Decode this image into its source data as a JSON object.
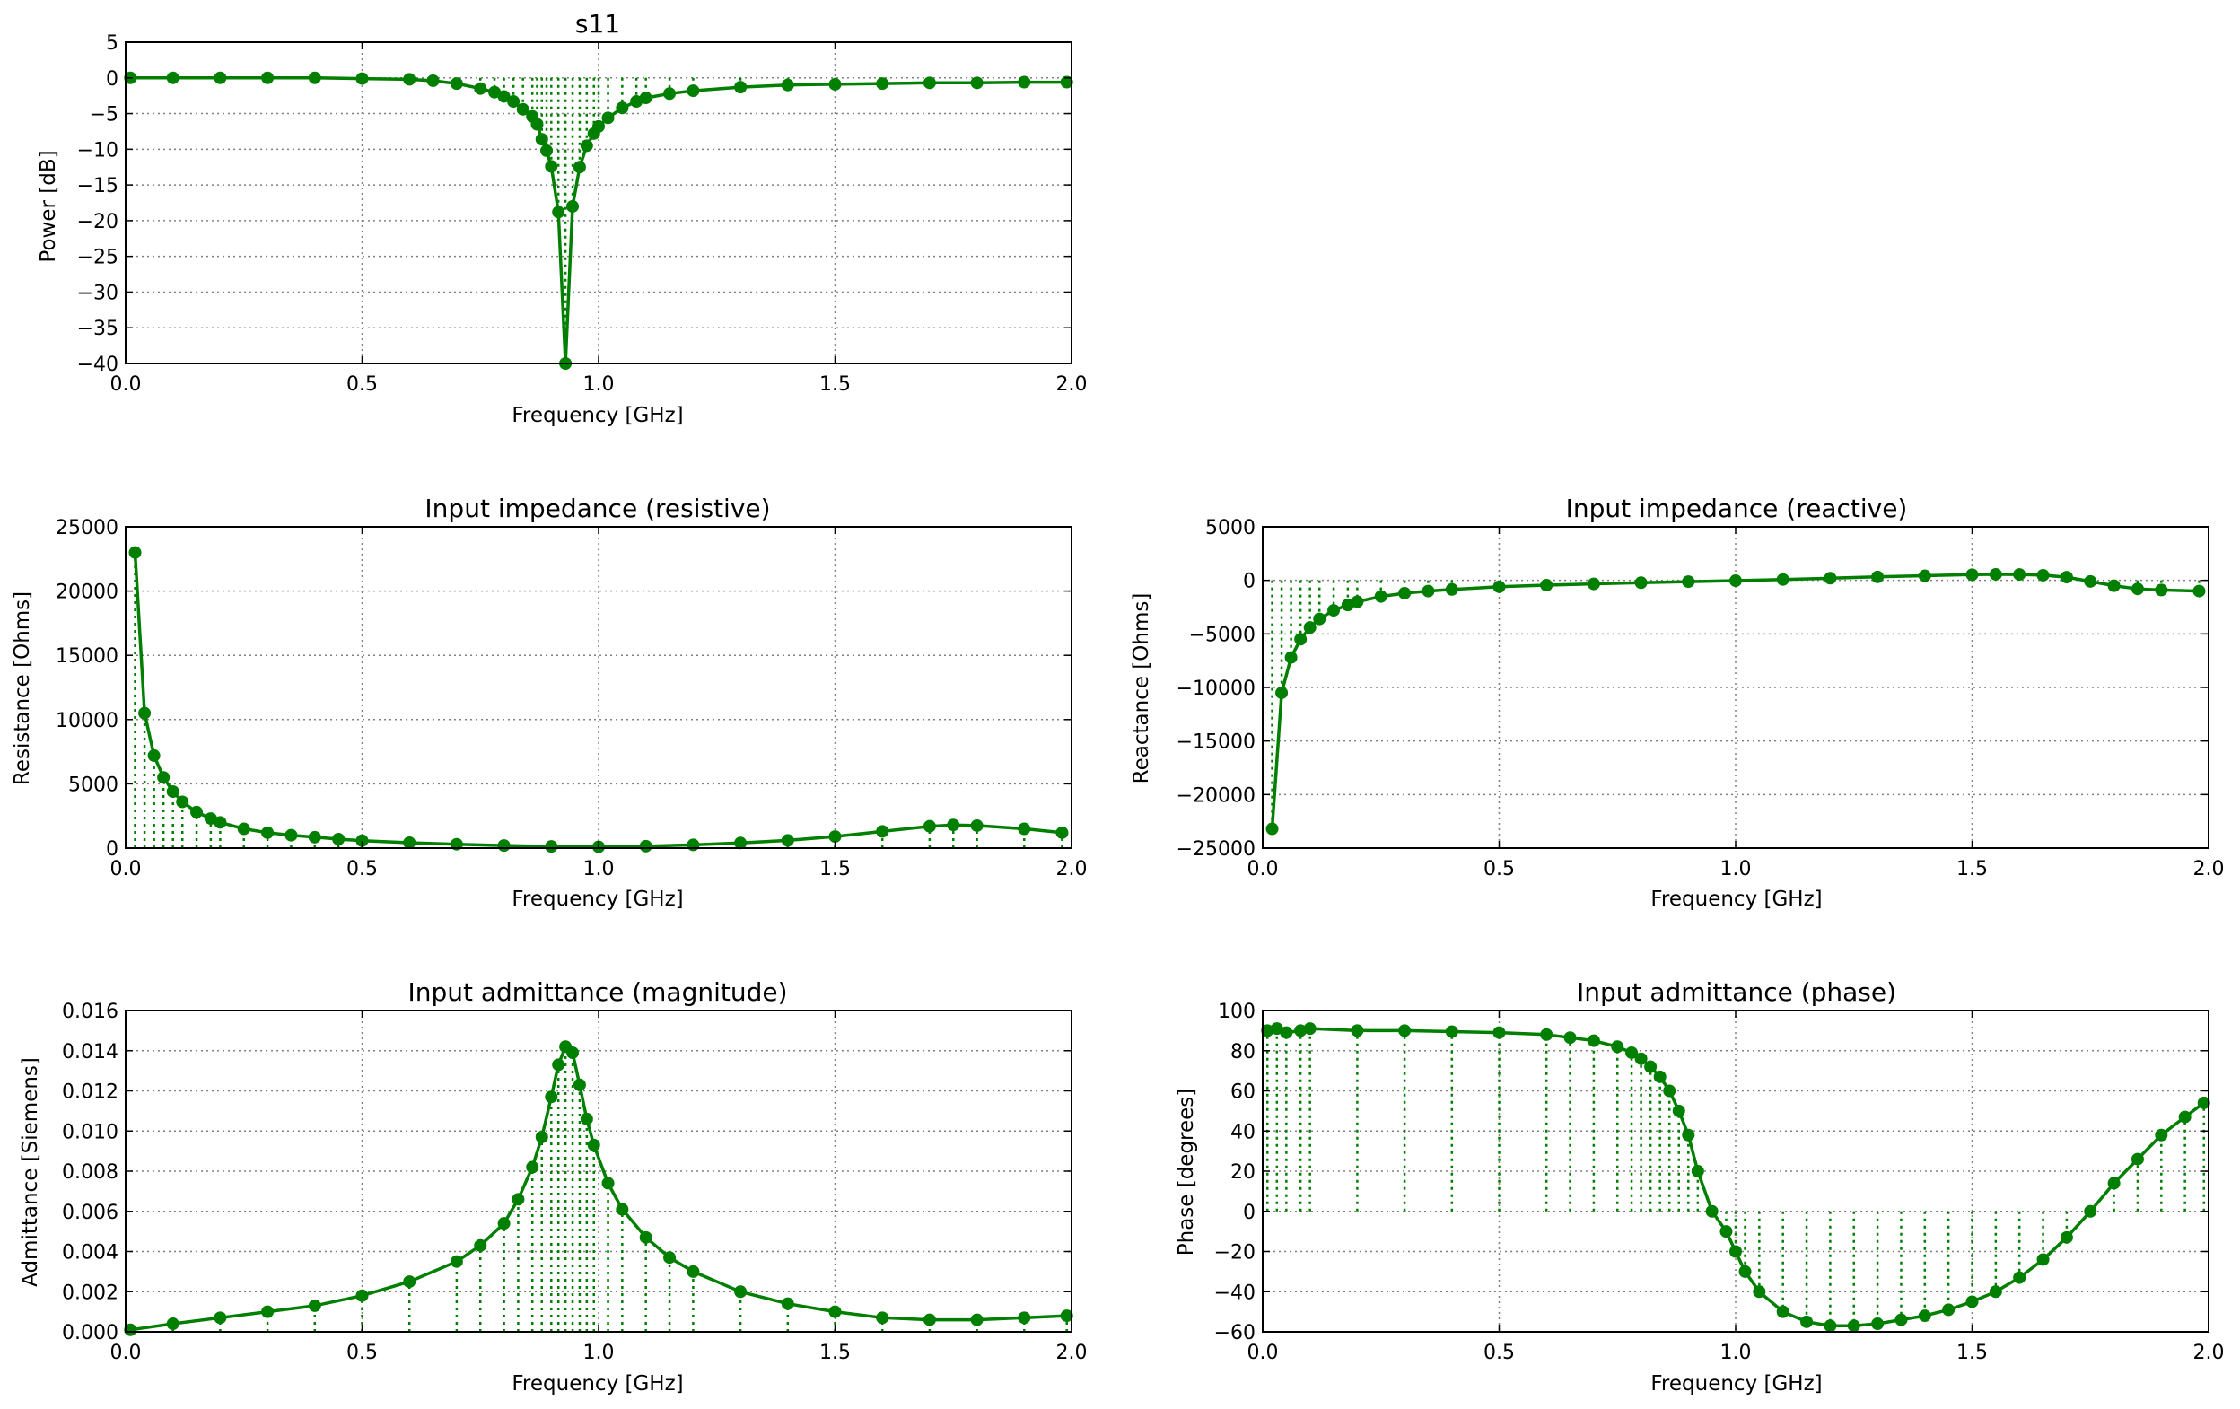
{
  "figure": {
    "background": "#ffffff",
    "line_color": "#007f00",
    "grid_color": "#808080"
  },
  "chart_data": [
    {
      "id": "s11",
      "type": "line",
      "title": "s11",
      "xlabel": "Frequency [GHz]",
      "ylabel": "Power [dB]",
      "xlim": [
        0.0,
        2.0
      ],
      "ylim": [
        -40,
        5
      ],
      "xticks": [
        "0.0",
        "0.5",
        "1.0",
        "1.5",
        "2.0"
      ],
      "yticks": [
        "5",
        "0",
        "−5",
        "−10",
        "−15",
        "−20",
        "−25",
        "−30",
        "−35",
        "−40"
      ],
      "ytick_values": [
        5,
        0,
        -5,
        -10,
        -15,
        -20,
        -25,
        -30,
        -35,
        -40
      ],
      "grid": true,
      "stem_baseline": 0,
      "style": "line-with-markers-and-dotted-stems",
      "x": [
        0.01,
        0.1,
        0.2,
        0.3,
        0.4,
        0.5,
        0.6,
        0.65,
        0.7,
        0.75,
        0.78,
        0.8,
        0.82,
        0.84,
        0.86,
        0.87,
        0.88,
        0.89,
        0.9,
        0.915,
        0.93,
        0.945,
        0.96,
        0.975,
        0.99,
        1.0,
        1.02,
        1.05,
        1.08,
        1.1,
        1.15,
        1.2,
        1.3,
        1.4,
        1.5,
        1.6,
        1.7,
        1.8,
        1.9,
        1.99
      ],
      "y": [
        0.0,
        0.0,
        0.0,
        0.0,
        0.0,
        -0.1,
        -0.2,
        -0.4,
        -0.8,
        -1.5,
        -2.0,
        -2.6,
        -3.3,
        -4.4,
        -5.4,
        -6.5,
        -8.6,
        -10.2,
        -12.4,
        -18.8,
        -40.0,
        -18.0,
        -12.5,
        -9.5,
        -7.8,
        -6.8,
        -5.6,
        -4.2,
        -3.3,
        -2.8,
        -2.2,
        -1.8,
        -1.3,
        -1.0,
        -0.9,
        -0.8,
        -0.7,
        -0.7,
        -0.6,
        -0.6
      ]
    },
    {
      "id": "resistance",
      "type": "line",
      "title": "Input impedance (resistive)",
      "xlabel": "Frequency [GHz]",
      "ylabel": "Resistance [Ohms]",
      "xlim": [
        0.0,
        2.0
      ],
      "ylim": [
        0,
        25000
      ],
      "xticks": [
        "0.0",
        "0.5",
        "1.0",
        "1.5",
        "2.0"
      ],
      "yticks": [
        "25000",
        "20000",
        "15000",
        "10000",
        "5000",
        "0"
      ],
      "ytick_values": [
        25000,
        20000,
        15000,
        10000,
        5000,
        0
      ],
      "grid": true,
      "stem_baseline": 0,
      "style": "line-with-markers-and-dotted-stems",
      "x": [
        0.02,
        0.04,
        0.06,
        0.08,
        0.1,
        0.12,
        0.15,
        0.18,
        0.2,
        0.25,
        0.3,
        0.35,
        0.4,
        0.45,
        0.5,
        0.6,
        0.7,
        0.8,
        0.9,
        1.0,
        1.1,
        1.2,
        1.3,
        1.4,
        1.5,
        1.6,
        1.7,
        1.75,
        1.8,
        1.9,
        1.98
      ],
      "y": [
        23000,
        10500,
        7200,
        5500,
        4400,
        3600,
        2800,
        2300,
        2000,
        1500,
        1200,
        1000,
        850,
        700,
        580,
        420,
        300,
        200,
        130,
        100,
        150,
        250,
        400,
        600,
        900,
        1300,
        1700,
        1800,
        1750,
        1500,
        1200
      ]
    },
    {
      "id": "reactance",
      "type": "line",
      "title": "Input impedance (reactive)",
      "xlabel": "Frequency [GHz]",
      "ylabel": "Reactance [Ohms]",
      "xlim": [
        0.0,
        2.0
      ],
      "ylim": [
        -25000,
        5000
      ],
      "xticks": [
        "0.0",
        "0.5",
        "1.0",
        "1.5",
        "2.0"
      ],
      "yticks": [
        "5000",
        "0",
        "−5000",
        "−10000",
        "−15000",
        "−20000",
        "−25000"
      ],
      "ytick_values": [
        5000,
        0,
        -5000,
        -10000,
        -15000,
        -20000,
        -25000
      ],
      "grid": true,
      "stem_baseline": 0,
      "style": "line-with-markers-and-dotted-stems",
      "x": [
        0.02,
        0.04,
        0.06,
        0.08,
        0.1,
        0.12,
        0.15,
        0.18,
        0.2,
        0.25,
        0.3,
        0.35,
        0.4,
        0.5,
        0.6,
        0.7,
        0.8,
        0.9,
        1.0,
        1.1,
        1.2,
        1.3,
        1.4,
        1.5,
        1.55,
        1.6,
        1.65,
        1.7,
        1.75,
        1.8,
        1.85,
        1.9,
        1.98
      ],
      "y": [
        -23200,
        -10500,
        -7200,
        -5500,
        -4400,
        -3600,
        -2800,
        -2300,
        -2000,
        -1500,
        -1200,
        -1000,
        -850,
        -600,
        -450,
        -330,
        -220,
        -120,
        -30,
        80,
        200,
        320,
        430,
        530,
        560,
        550,
        480,
        300,
        -100,
        -500,
        -800,
        -900,
        -1000
      ]
    },
    {
      "id": "admittance_magnitude",
      "type": "line",
      "title": "Input admittance (magnitude)",
      "xlabel": "Frequency [GHz]",
      "ylabel": "Admittance [Siemens]",
      "xlim": [
        0.0,
        2.0
      ],
      "ylim": [
        0.0,
        0.016
      ],
      "xticks": [
        "0.0",
        "0.5",
        "1.0",
        "1.5",
        "2.0"
      ],
      "yticks": [
        "0.016",
        "0.014",
        "0.012",
        "0.010",
        "0.008",
        "0.006",
        "0.004",
        "0.002",
        "0.000"
      ],
      "ytick_values": [
        0.016,
        0.014,
        0.012,
        0.01,
        0.008,
        0.006,
        0.004,
        0.002,
        0.0
      ],
      "grid": true,
      "stem_baseline": 0,
      "style": "line-with-markers-and-dotted-stems",
      "x": [
        0.01,
        0.1,
        0.2,
        0.3,
        0.4,
        0.5,
        0.6,
        0.7,
        0.75,
        0.8,
        0.83,
        0.86,
        0.88,
        0.9,
        0.915,
        0.93,
        0.945,
        0.96,
        0.975,
        0.99,
        1.02,
        1.05,
        1.1,
        1.15,
        1.2,
        1.3,
        1.4,
        1.5,
        1.6,
        1.7,
        1.8,
        1.9,
        1.99
      ],
      "y": [
        0.0001,
        0.0004,
        0.0007,
        0.001,
        0.0013,
        0.0018,
        0.0025,
        0.0035,
        0.0043,
        0.0054,
        0.0066,
        0.0082,
        0.0097,
        0.0117,
        0.0133,
        0.0142,
        0.0139,
        0.0123,
        0.0106,
        0.0093,
        0.0074,
        0.0061,
        0.0047,
        0.0037,
        0.003,
        0.002,
        0.0014,
        0.001,
        0.0007,
        0.0006,
        0.0006,
        0.0007,
        0.0008
      ]
    },
    {
      "id": "admittance_phase",
      "type": "line",
      "title": "Input admittance (phase)",
      "xlabel": "Frequency [GHz]",
      "ylabel": "Phase [degrees]",
      "xlim": [
        0.0,
        2.0
      ],
      "ylim": [
        -60,
        100
      ],
      "xticks": [
        "0.0",
        "0.5",
        "1.0",
        "1.5",
        "2.0"
      ],
      "yticks": [
        "100",
        "80",
        "60",
        "40",
        "20",
        "0",
        "−20",
        "−40",
        "−60"
      ],
      "ytick_values": [
        100,
        80,
        60,
        40,
        20,
        0,
        -20,
        -40,
        -60
      ],
      "grid": true,
      "stem_baseline": 0,
      "style": "line-with-markers-and-dotted-stems",
      "x": [
        0.01,
        0.03,
        0.05,
        0.08,
        0.1,
        0.2,
        0.3,
        0.4,
        0.5,
        0.6,
        0.65,
        0.7,
        0.75,
        0.78,
        0.8,
        0.82,
        0.84,
        0.86,
        0.88,
        0.9,
        0.92,
        0.95,
        0.98,
        1.0,
        1.02,
        1.05,
        1.1,
        1.15,
        1.2,
        1.25,
        1.3,
        1.35,
        1.4,
        1.45,
        1.5,
        1.55,
        1.6,
        1.65,
        1.7,
        1.75,
        1.8,
        1.85,
        1.9,
        1.95,
        1.99
      ],
      "y": [
        90,
        91,
        89,
        90,
        91,
        90,
        90,
        89.5,
        89,
        88,
        86.5,
        85,
        82,
        79,
        76,
        72,
        67,
        60,
        50,
        38,
        20,
        0,
        -10,
        -20,
        -30,
        -40,
        -50,
        -55,
        -57,
        -57,
        -56,
        -54,
        -52,
        -49,
        -45,
        -40,
        -33,
        -24,
        -13,
        0,
        14,
        26,
        38,
        47,
        54
      ]
    }
  ]
}
